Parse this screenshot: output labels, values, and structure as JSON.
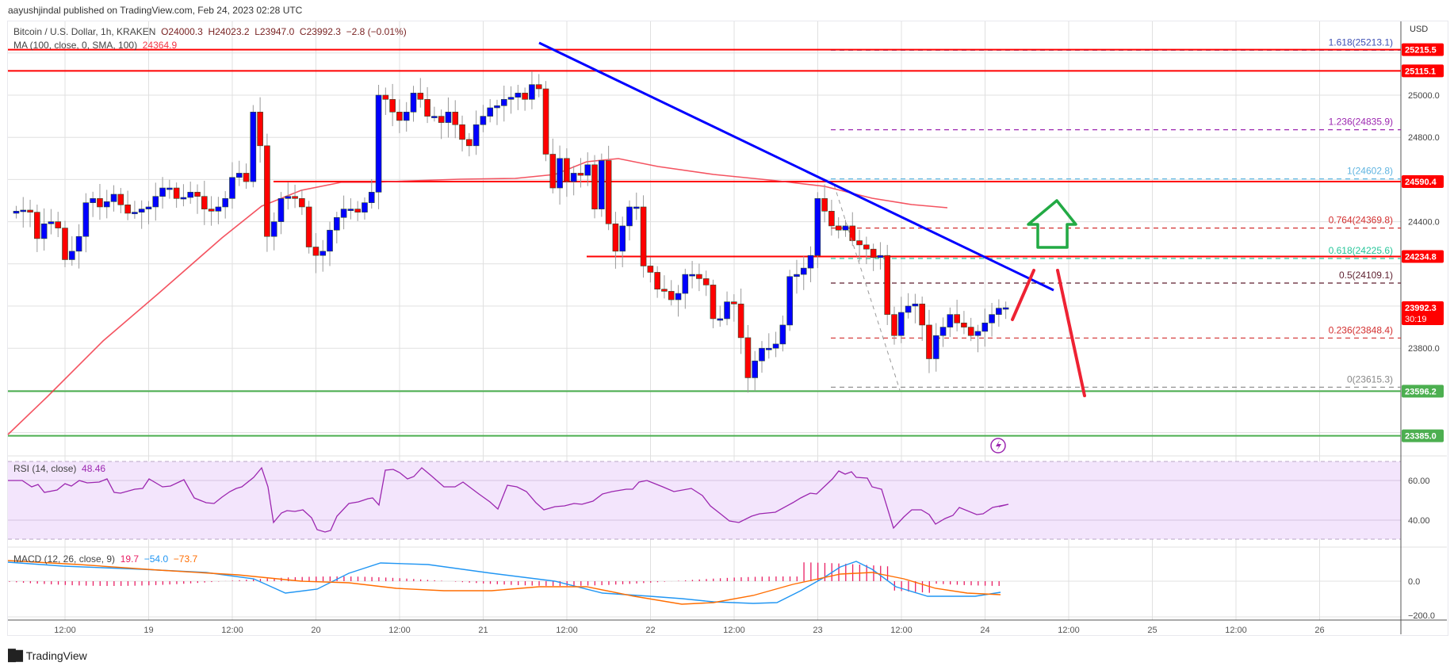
{
  "header": {
    "published": "aayushjindal published on TradingView.com, Feb 24, 2023 02:28 UTC"
  },
  "legend": {
    "symbol": "Bitcoin / U.S. Dollar, 1h, KRAKEN",
    "open": "O24000.3",
    "high": "H24023.2",
    "low": "L23947.0",
    "close": "C23992.3",
    "change": "−2.8 (−0.01%)",
    "ma_label": "MA (100, close, 0, SMA, 100)",
    "ma_value": "24364.9",
    "rsi_label": "RSI (14, close)",
    "rsi_value": "48.46",
    "macd_label": "MACD (12, 26, close, 9)",
    "macd_hist": "19.7",
    "macd_line": "−54.0",
    "macd_signal": "−73.7"
  },
  "price_axis": {
    "currency": "USD",
    "ticks": [
      "25000.0",
      "24800.0",
      "24400.0",
      "23800.0"
    ],
    "tick_values": [
      25000,
      24800,
      24400,
      23800
    ],
    "badges": [
      {
        "label": "25215.5",
        "value": 25215.5,
        "color": "#ff0000"
      },
      {
        "label": "25115.1",
        "value": 25115.1,
        "color": "#ff0000"
      },
      {
        "label": "24590.4",
        "value": 24590.4,
        "color": "#ff0000"
      },
      {
        "label": "24234.8",
        "value": 24234.8,
        "color": "#ff0000"
      },
      {
        "label": "23992.3",
        "sub": "30:19",
        "value": 23992.3,
        "color": "#ff0000"
      },
      {
        "label": "23596.2",
        "value": 23596.2,
        "color": "#4caf50"
      },
      {
        "label": "23385.0",
        "value": 23385.0,
        "color": "#4caf50"
      }
    ]
  },
  "rsi_axis": {
    "ticks": [
      "60.00",
      "40.00"
    ]
  },
  "macd_axis": {
    "ticks": [
      "0.0",
      "−200.0"
    ]
  },
  "time_axis": {
    "labels": [
      "12:00",
      "19",
      "12:00",
      "20",
      "12:00",
      "21",
      "12:00",
      "22",
      "12:00",
      "23",
      "12:00",
      "24",
      "12:00",
      "25",
      "12:00",
      "26"
    ]
  },
  "fibonacci": [
    {
      "label": "1.618(25213.1)",
      "value": 25213.1,
      "color": "#3f51b5"
    },
    {
      "label": "1.236(24835.9)",
      "value": 24835.9,
      "color": "#9c27b0"
    },
    {
      "label": "1(24602.8)",
      "value": 24602.8,
      "color": "#5fb4e0"
    },
    {
      "label": "0.764(24369.8)",
      "value": 24369.8,
      "color": "#d32f2f"
    },
    {
      "label": "0.618(24225.6)",
      "value": 24225.6,
      "color": "#26c69a"
    },
    {
      "label": "0.5(24109.1)",
      "value": 24109.1,
      "color": "#5d1f2e"
    },
    {
      "label": "0.236(23848.4)",
      "value": 23848.4,
      "color": "#d32f2f"
    },
    {
      "label": "0(23615.3)",
      "value": 23615.3,
      "color": "#888888"
    }
  ],
  "colors": {
    "up": "#0000ff",
    "down": "#ff0000",
    "ma": "#f23645",
    "trendline": "#0000ff",
    "support": "#4caf50",
    "resistance": "#ff0000",
    "rsi": "#9c27b0",
    "rsi_band": "#f3e5fc",
    "macd": "#2196f3",
    "signal": "#ff6d00",
    "hist": "#e91e63"
  },
  "footer": {
    "brand": "TradingView"
  },
  "chart_data": {
    "type": "candlestick",
    "title": "Bitcoin / U.S. Dollar, 1h, KRAKEN",
    "xlabel": "",
    "ylabel": "USD",
    "ylim": [
      23300,
      25300
    ],
    "x_range": [
      "Feb 18 05:00",
      "Feb 24 02:00"
    ],
    "closes": [
      24450,
      24455,
      24445,
      24320,
      24390,
      24400,
      24370,
      24220,
      24260,
      24330,
      24490,
      24510,
      24470,
      24495,
      24530,
      24480,
      24440,
      24445,
      24460,
      24470,
      24520,
      24560,
      24560,
      24510,
      24515,
      24540,
      24520,
      24460,
      24450,
      24470,
      24510,
      24610,
      24630,
      24590,
      24920,
      24760,
      24330,
      24400,
      24510,
      24520,
      24510,
      24470,
      24280,
      24240,
      24260,
      24360,
      24420,
      24460,
      24460,
      24445,
      24490,
      24540,
      25000,
      24980,
      24920,
      24880,
      24920,
      25010,
      24980,
      24900,
      24900,
      24870,
      24920,
      24860,
      24790,
      24760,
      24860,
      24900,
      24940,
      24950,
      24980,
      24990,
      25010,
      24980,
      25050,
      25030,
      24720,
      24560,
      24700,
      24590,
      24630,
      24620,
      24670,
      24460,
      24690,
      24390,
      24260,
      24380,
      24470,
      24470,
      24190,
      24160,
      24080,
      24070,
      24030,
      24060,
      24150,
      24150,
      24130,
      24100,
      23940,
      23940,
      24020,
      24010,
      23850,
      23660,
      23740,
      23800,
      23800,
      23820,
      23910,
      24140,
      24150,
      24180,
      24240,
      24510,
      24450,
      24380,
      24360,
      24380,
      24310,
      24290,
      24270,
      24230,
      24240,
      23960,
      23860,
      23970,
      24000,
      24010,
      23910,
      23750,
      23860,
      23900,
      23960,
      23920,
      23900,
      23860,
      23880,
      23920,
      23960,
      23990,
      23992.3
    ],
    "ma100": {
      "start_x_hour": 0,
      "description": "rises from ~23350 to ~24400 by Feb 20 18:00, peaks ~24630 near Feb 21 16:00, declines to 24364.9"
    },
    "levels": {
      "resistance": [
        25215.5,
        25115.1,
        24590.4,
        24234.8
      ],
      "support": [
        23596.2,
        23385.0
      ]
    },
    "fib_retracement": {
      "high": 24602.8,
      "low": 23615.3,
      "levels": [
        0,
        0.236,
        0.5,
        0.618,
        0.764,
        1,
        1.236,
        1.618
      ]
    },
    "trendline": {
      "from": [
        "Feb 21 05:00",
        25280
      ],
      "to": [
        "Feb 24 07:00",
        24120
      ]
    },
    "rsi": {
      "value": 48.46,
      "band": [
        30,
        70
      ],
      "ticks": [
        60,
        40
      ]
    },
    "macd": {
      "hist": 19.7,
      "macd": -54.0,
      "signal": -73.7,
      "ticks": [
        0,
        -200
      ]
    }
  }
}
